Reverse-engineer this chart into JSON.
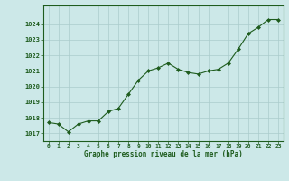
{
  "x": [
    0,
    1,
    2,
    3,
    4,
    5,
    6,
    7,
    8,
    9,
    10,
    11,
    12,
    13,
    14,
    15,
    16,
    17,
    18,
    19,
    20,
    21,
    22,
    23
  ],
  "y": [
    1017.7,
    1017.6,
    1017.1,
    1017.6,
    1017.8,
    1017.8,
    1018.4,
    1018.6,
    1019.5,
    1020.4,
    1021.0,
    1021.2,
    1021.5,
    1021.1,
    1020.9,
    1020.8,
    1021.0,
    1021.1,
    1021.5,
    1022.4,
    1023.4,
    1023.8,
    1024.3,
    1024.3
  ],
  "line_color": "#1e5c1e",
  "marker_color": "#1e5c1e",
  "bg_color": "#cce8e8",
  "grid_color": "#aacccc",
  "xlabel": "Graphe pression niveau de la mer (hPa)",
  "xlabel_color": "#1e5c1e",
  "tick_color": "#1e5c1e",
  "yticks": [
    1017,
    1018,
    1019,
    1020,
    1021,
    1022,
    1023,
    1024
  ],
  "xticks": [
    0,
    1,
    2,
    3,
    4,
    5,
    6,
    7,
    8,
    9,
    10,
    11,
    12,
    13,
    14,
    15,
    16,
    17,
    18,
    19,
    20,
    21,
    22,
    23
  ],
  "ylim": [
    1016.5,
    1025.2
  ],
  "xlim": [
    -0.5,
    23.5
  ]
}
